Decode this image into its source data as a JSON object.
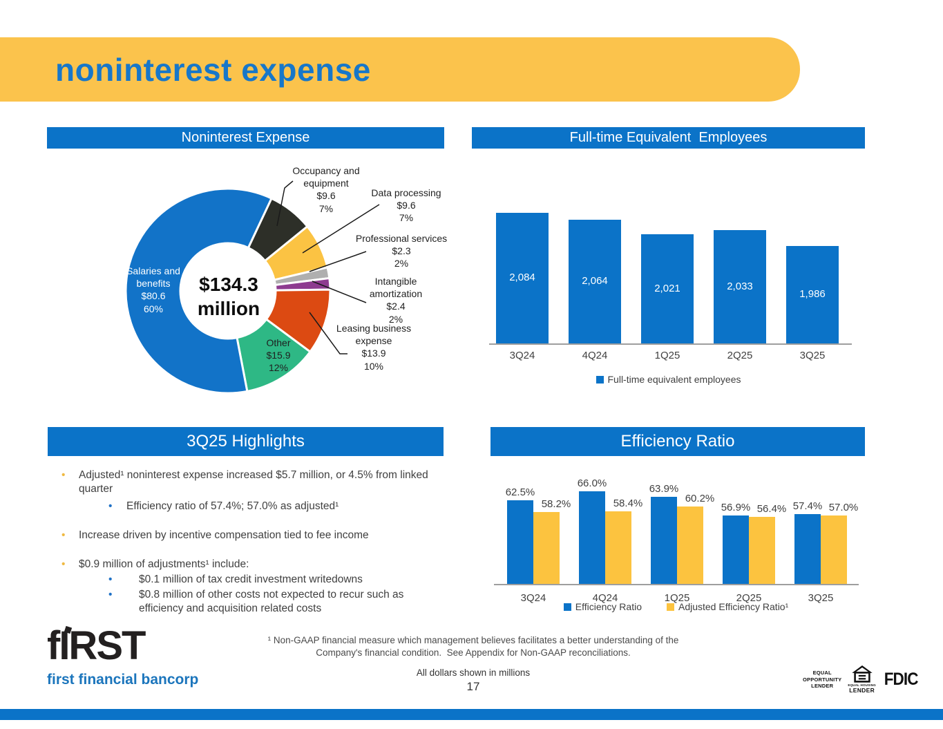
{
  "slide": {
    "title": "noninterest expense",
    "page_number": "17",
    "dollars_note": "All dollars shown in millions",
    "footnote": {
      "line1": "¹ Non-GAAP financial measure which management believes facilitates a better understanding of the",
      "line2": "Company's financial condition.  See Appendix for Non-GAAP reconciliations."
    }
  },
  "brand": {
    "logo_text": "fIRST",
    "logo_subtitle": "first financial bancorp"
  },
  "badges": {
    "equal_opportunity_lender": "EQUAL\nOPPORTUNITY\nLENDER",
    "equal_housing_top": "EQUAL HOUSING",
    "equal_housing_bottom": "LENDER",
    "fdic": "FDIC"
  },
  "panels": {
    "pie_title": "Noninterest Expense",
    "fte_title": "Full-time Equivalent  Employees",
    "highlights_title": "3Q25 Highlights",
    "efficiency_title": "Efficiency Ratio"
  },
  "highlights": {
    "items": [
      {
        "level": 1,
        "text": "Adjusted¹ noninterest expense increased $5.7 million, or 4.5% from linked quarter"
      },
      {
        "level": 2,
        "indent": "narrow",
        "text": "Efficiency ratio of 57.4%; 57.0% as adjusted¹"
      },
      {
        "level": 1,
        "text": "Increase driven by incentive compensation tied to fee income"
      },
      {
        "level": 1,
        "text": "$0.9 million of adjustments¹ include:"
      },
      {
        "level": 2,
        "text": "$0.1 million of tax credit investment writedowns"
      },
      {
        "level": 2,
        "text": "$0.8 million of other costs not expected to recur such as efficiency and acquisition related costs"
      }
    ]
  },
  "chart_data": [
    {
      "type": "pie",
      "title": "Noninterest Expense",
      "center_label": "$134.3\nmillion",
      "start_angle_deg": 25.2,
      "slices": [
        {
          "label": "Occupancy and\nequipment",
          "amount": "$9.6",
          "percent": "7%",
          "value": 9.6,
          "color": "#2D2F28"
        },
        {
          "label": "Data processing",
          "amount": "$9.6",
          "percent": "7%",
          "value": 9.6,
          "color": "#FBC343"
        },
        {
          "label": "Professional services",
          "amount": "$2.3",
          "percent": "2%",
          "value": 2.3,
          "color": "#AFAFAF"
        },
        {
          "label": "Intangible\namortization",
          "amount": "$2.4",
          "percent": "2%",
          "value": 2.4,
          "color": "#8E3B90"
        },
        {
          "label": "Leasing business\nexpense",
          "amount": "$13.9",
          "percent": "10%",
          "value": 13.9,
          "color": "#DC4A12"
        },
        {
          "label": "Other",
          "amount": "$15.9",
          "percent": "12%",
          "value": 15.9,
          "color": "#2EB885"
        },
        {
          "label": "Salaries and\nbenefits",
          "amount": "$80.6",
          "percent": "60%",
          "value": 80.6,
          "color": "#1273C8"
        }
      ]
    },
    {
      "type": "bar",
      "title": "Full-time Equivalent  Employees",
      "categories": [
        "3Q24",
        "4Q24",
        "1Q25",
        "2Q25",
        "3Q25"
      ],
      "values": [
        2084,
        2064,
        2021,
        2033,
        1986
      ],
      "value_labels": [
        "2,084",
        "2,064",
        "2,021",
        "2,033",
        "1,986"
      ],
      "legend": [
        "Full-time equivalent employees"
      ],
      "bar_color": "#0B73C8",
      "ylim": [
        1700,
        2160
      ],
      "grid": false,
      "legend_position": "bottom"
    },
    {
      "type": "bar",
      "title": "Efficiency Ratio",
      "categories": [
        "3Q24",
        "4Q24",
        "1Q25",
        "2Q25",
        "3Q25"
      ],
      "series": [
        {
          "name": "Efficiency Ratio",
          "color": "#0B73C8",
          "values": [
            62.5,
            66.0,
            63.9,
            56.9,
            57.4
          ],
          "value_labels": [
            "62.5%",
            "66.0%",
            "63.9%",
            "56.9%",
            "57.4%"
          ]
        },
        {
          "name": "Adjusted Efficiency Ratio¹",
          "color": "#FCC33F",
          "values": [
            58.2,
            58.4,
            60.2,
            56.4,
            57.0
          ],
          "value_labels": [
            "58.2%",
            "58.4%",
            "60.2%",
            "56.4%",
            "57.0%"
          ]
        }
      ],
      "ylim": [
        31,
        70
      ],
      "grid": false,
      "legend_position": "bottom"
    }
  ],
  "colors": {
    "banner_yellow": "#FBC34C",
    "title_blue": "#1777C9",
    "band_blue": "#0B73C8",
    "axis_gray": "#9E9E9E",
    "text_dark": "#3F3F3F",
    "bullet_gold": "#EFB942",
    "bullet_blue": "#2072C6",
    "logo_blue": "#1B75BC",
    "logo_black": "#232020",
    "pie_center_text": "#0D0D0D"
  }
}
